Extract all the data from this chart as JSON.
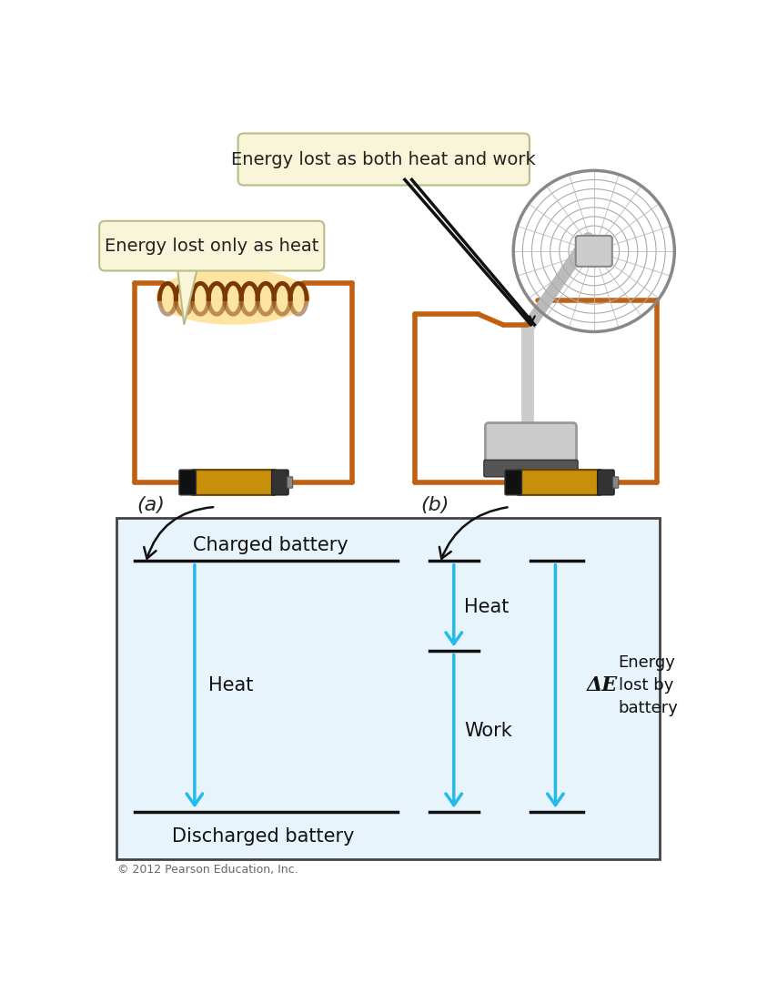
{
  "bg_color": "#ffffff",
  "diagram_bg": "#e8f4fb",
  "diagram_border": "#444444",
  "arrow_color": "#22bbee",
  "line_color": "#111111",
  "callout_bg": "#f8f5d8",
  "callout_border": "#bbbb88",
  "label_a": "(a)",
  "label_b": "(b)",
  "callout1_text": "Energy lost only as heat",
  "callout2_text": "Energy lost as both heat and work",
  "charged_text": "Charged battery",
  "discharged_text": "Discharged battery",
  "heat_left_text": "Heat",
  "heat_mid_text": "Heat",
  "work_text": "Work",
  "delta_e_text": "ΔE",
  "energy_lost_text": "Energy\nlost by\nbattery",
  "copyright_text": "© 2012 Pearson Education, Inc.",
  "wire_color": "#c06010",
  "battery_gold": "#c8900a",
  "battery_black": "#111111",
  "coil_color": "#7B3800",
  "coil_glow": "#ffcc55"
}
